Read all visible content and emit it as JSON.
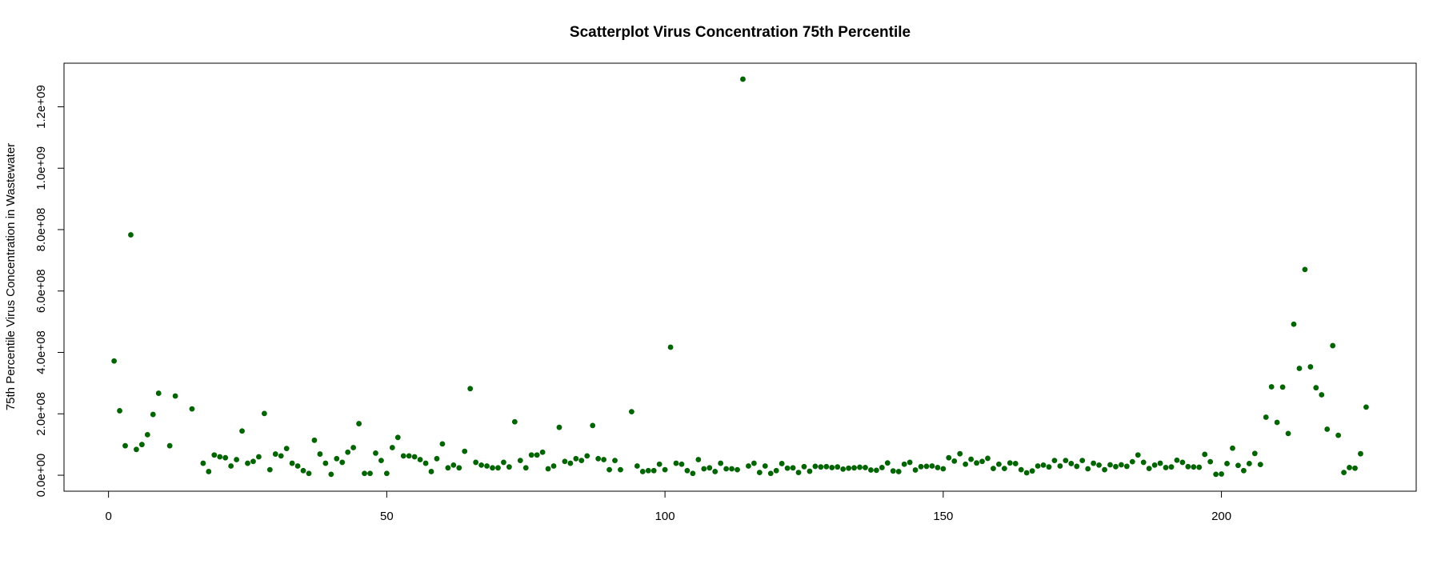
{
  "chart_data": {
    "type": "scatter",
    "title": "Scatterplot Virus Concentration 75th Percentile",
    "y_label": "75th Percentile Virus Concentration in Wastewater",
    "color": "#006400",
    "xlim": [
      -8,
      235
    ],
    "xticks": [
      0,
      50,
      100,
      150,
      200
    ],
    "ylim": [
      -52000000.0,
      1342000000.0
    ],
    "yticks": [
      {
        "value": 0,
        "label": "0.0e+00"
      },
      {
        "value": 200000000.0,
        "label": "2.0e+08"
      },
      {
        "value": 400000000.0,
        "label": "4.0e+08"
      },
      {
        "value": 600000000.0,
        "label": "6.0e+08"
      },
      {
        "value": 800000000.0,
        "label": "8.0e+08"
      },
      {
        "value": 1000000000.0,
        "label": "1.0e+09"
      },
      {
        "value": 1200000000.0,
        "label": "1.2e+09"
      }
    ],
    "x": [
      1,
      2,
      3,
      4,
      5,
      6,
      7,
      8,
      9,
      10,
      11,
      12,
      13,
      14,
      15,
      16,
      17,
      18,
      19,
      20,
      21,
      22,
      23,
      24,
      25,
      26,
      27,
      28,
      29,
      30,
      31,
      32,
      33,
      34,
      35,
      36,
      37,
      38,
      39,
      40,
      41,
      42,
      43,
      44,
      45,
      46,
      47,
      48,
      49,
      50,
      51,
      52,
      53,
      54,
      55,
      56,
      57,
      58,
      59,
      60,
      61,
      62,
      63,
      64,
      65,
      66,
      67,
      68,
      69,
      70,
      71,
      72,
      73,
      74,
      75,
      76,
      77,
      78,
      79,
      80,
      81,
      82,
      83,
      84,
      85,
      86,
      87,
      88,
      89,
      90,
      91,
      92,
      93,
      94,
      95,
      96,
      97,
      98,
      99,
      100,
      101,
      102,
      103,
      104,
      105,
      106,
      107,
      108,
      109,
      110,
      111,
      112,
      113,
      114,
      115,
      116,
      117,
      118,
      119,
      120,
      121,
      122,
      123,
      124,
      125,
      126,
      127,
      128,
      129,
      130,
      131,
      132,
      133,
      134,
      135,
      136,
      137,
      138,
      139,
      140,
      141,
      142,
      143,
      144,
      145,
      146,
      147,
      148,
      149,
      150,
      151,
      152,
      153,
      154,
      155,
      156,
      157,
      158,
      159,
      160,
      161,
      162,
      163,
      164,
      165,
      166,
      167,
      168,
      169,
      170,
      171,
      172,
      173,
      174,
      175,
      176,
      177,
      178,
      179,
      180,
      181,
      182,
      183,
      184,
      185,
      186,
      187,
      188,
      189,
      190,
      191,
      192,
      193,
      194,
      195,
      196,
      197,
      198,
      199,
      200,
      201,
      202,
      203,
      204,
      205,
      206,
      207,
      208,
      209,
      210,
      211,
      212,
      213,
      214,
      215,
      216,
      217,
      218,
      219,
      220,
      221,
      222,
      223,
      224,
      225,
      226
    ],
    "values": [
      372000000.0,
      210000000.0,
      96000000.0,
      783000000.0,
      84000000.0,
      100000000.0,
      132000000.0,
      198000000.0,
      267000000.0,
      null,
      96000000.0,
      258000000.0,
      null,
      null,
      216000000.0,
      null,
      39000000.0,
      12000000.0,
      66000000.0,
      60000000.0,
      57000000.0,
      30000000.0,
      51000000.0,
      144000000.0,
      39000000.0,
      45000000.0,
      60000000.0,
      201000000.0,
      18000000.0,
      69000000.0,
      63000000.0,
      87000000.0,
      39000000.0,
      30000000.0,
      15000000.0,
      6000000.0,
      114000000.0,
      69000000.0,
      39000000.0,
      3000000.0,
      54000000.0,
      42000000.0,
      75000000.0,
      90000000.0,
      168000000.0,
      6000000.0,
      6000000.0,
      72000000.0,
      48000000.0,
      6000000.0,
      90000000.0,
      123000000.0,
      63000000.0,
      63000000.0,
      60000000.0,
      51000000.0,
      39000000.0,
      12000000.0,
      54000000.0,
      102000000.0,
      24000000.0,
      33000000.0,
      24000000.0,
      78000000.0,
      282000000.0,
      42000000.0,
      33000000.0,
      30000000.0,
      24000000.0,
      24000000.0,
      42000000.0,
      27000000.0,
      174000000.0,
      48000000.0,
      24000000.0,
      66000000.0,
      66000000.0,
      75000000.0,
      21000000.0,
      30000000.0,
      156000000.0,
      45000000.0,
      39000000.0,
      54000000.0,
      48000000.0,
      63000000.0,
      162000000.0,
      54000000.0,
      51000000.0,
      18000000.0,
      48000000.0,
      18000000.0,
      null,
      207000000.0,
      30000000.0,
      12000000.0,
      15000000.0,
      15000000.0,
      36000000.0,
      18000000.0,
      417000000.0,
      39000000.0,
      36000000.0,
      15000000.0,
      6000000.0,
      51000000.0,
      21000000.0,
      24000000.0,
      12000000.0,
      39000000.0,
      21000000.0,
      21000000.0,
      18000000.0,
      1290000000.0,
      30000000.0,
      39000000.0,
      9000000.0,
      30000000.0,
      6000000.0,
      15000000.0,
      38000000.0,
      23000000.0,
      24000000.0,
      9000000.0,
      28000000.0,
      13000000.0,
      29000000.0,
      27000000.0,
      28000000.0,
      25000000.0,
      27000000.0,
      20000000.0,
      23000000.0,
      24000000.0,
      26000000.0,
      25000000.0,
      17000000.0,
      16000000.0,
      25000000.0,
      40000000.0,
      14000000.0,
      12000000.0,
      36000000.0,
      42000000.0,
      17000000.0,
      28000000.0,
      29000000.0,
      30000000.0,
      25000000.0,
      21000000.0,
      57000000.0,
      46000000.0,
      70000000.0,
      36000000.0,
      52000000.0,
      40000000.0,
      45000000.0,
      55000000.0,
      22000000.0,
      36000000.0,
      22000000.0,
      40000000.0,
      38000000.0,
      18000000.0,
      8000000.0,
      14000000.0,
      30000000.0,
      33000000.0,
      27000000.0,
      48000000.0,
      30000000.0,
      48000000.0,
      38000000.0,
      29000000.0,
      48000000.0,
      21000000.0,
      39000000.0,
      33000000.0,
      18000000.0,
      34000000.0,
      28000000.0,
      34000000.0,
      29000000.0,
      44000000.0,
      66000000.0,
      42000000.0,
      22000000.0,
      33000000.0,
      39000000.0,
      25000000.0,
      27000000.0,
      49000000.0,
      42000000.0,
      28000000.0,
      27000000.0,
      26000000.0,
      68000000.0,
      44000000.0,
      3000000.0,
      4000000.0,
      38000000.0,
      88000000.0,
      32000000.0,
      15000000.0,
      38000000.0,
      71000000.0,
      35000000.0,
      189000000.0,
      288000000.0,
      172000000.0,
      287000000.0,
      136000000.0,
      492000000.0,
      348000000.0,
      670000000.0,
      353000000.0,
      285000000.0,
      262000000.0,
      150000000.0,
      422000000.0,
      130000000.0,
      9000000.0,
      25000000.0,
      23000000.0,
      70000000.0,
      222000000.0
    ]
  }
}
